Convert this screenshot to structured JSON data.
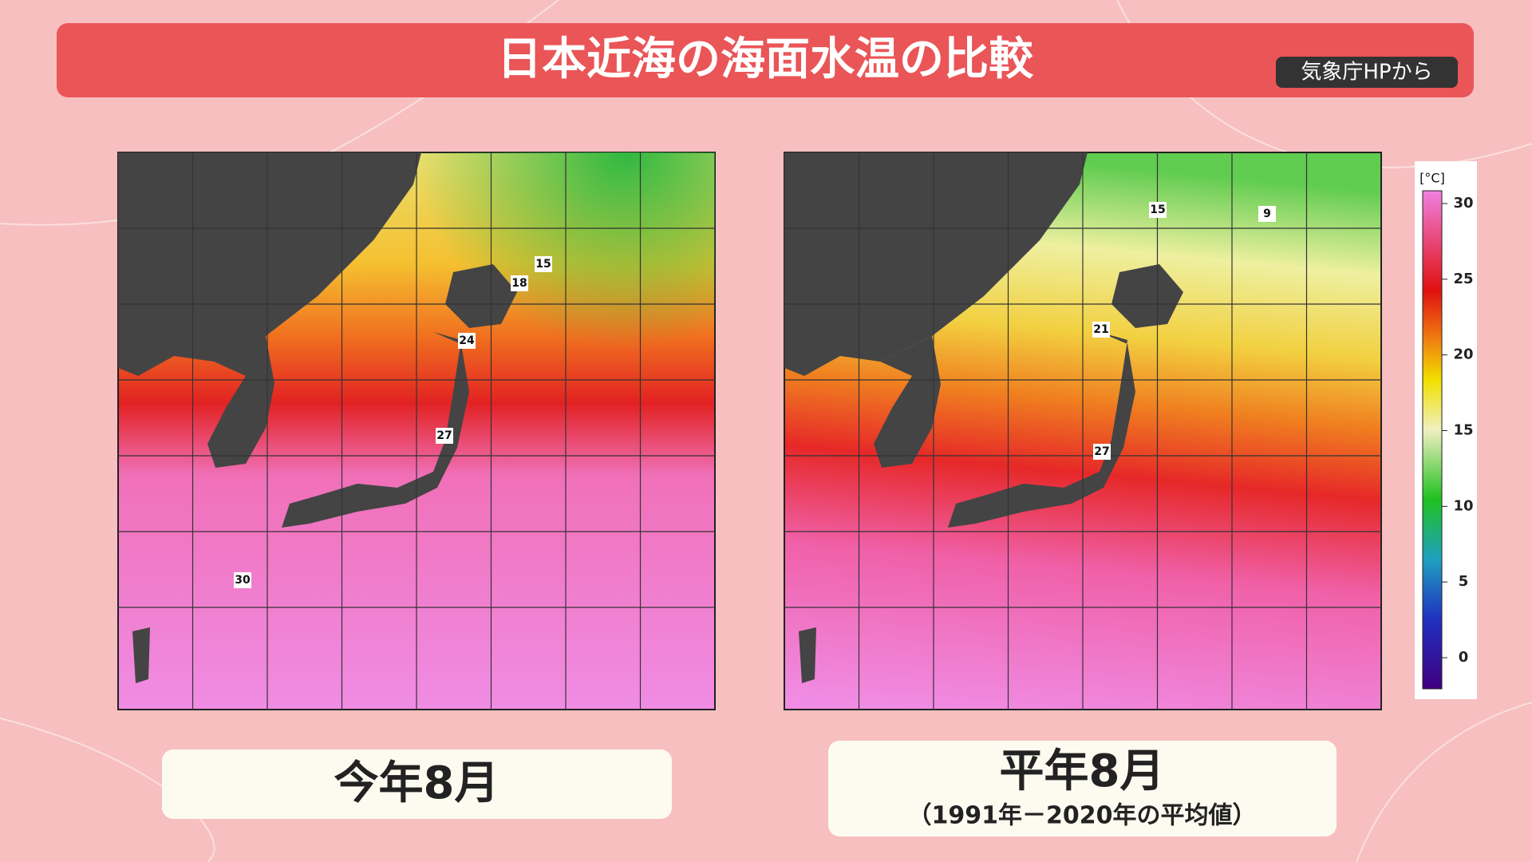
{
  "header": {
    "title": "日本近海の海面水温の比較",
    "source": "気象庁HPから"
  },
  "maps": [
    {
      "caption": "今年8月",
      "contour_labels": [
        "15",
        "18",
        "24",
        "27",
        "30"
      ]
    },
    {
      "caption": "平年8月",
      "subcaption": "（1991年－2020年の平均値）",
      "contour_labels": [
        "15",
        "9",
        "21",
        "27"
      ]
    }
  ],
  "colorbar": {
    "unit": "[°C]",
    "ticks": [
      30,
      25,
      20,
      15,
      10,
      5,
      0
    ]
  }
}
